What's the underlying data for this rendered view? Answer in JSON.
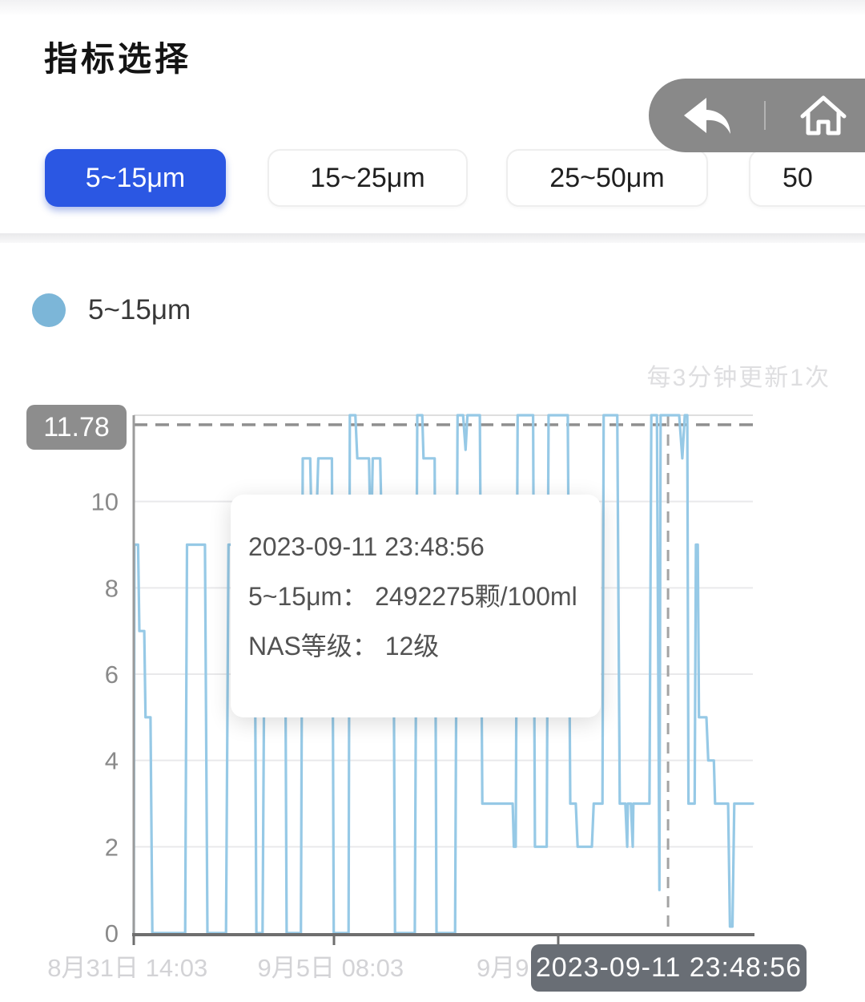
{
  "header": {
    "title": "指标选择"
  },
  "nav": {
    "back_icon": "back-arrow",
    "home_icon": "home"
  },
  "tabs": [
    {
      "label": "5~15μm",
      "active": true
    },
    {
      "label": "15~25μm",
      "active": false
    },
    {
      "label": "25~50μm",
      "active": false
    },
    {
      "label": "50",
      "active": false,
      "clipped": true
    }
  ],
  "legend": {
    "label": "5~15μm",
    "color": "#7cb6d8"
  },
  "update_note": "每3分钟更新1次",
  "max_badge": "11.78",
  "tooltip": {
    "line1": "2023-09-11 23:48:56",
    "line2": "5~15μm：  2492275颗/100ml",
    "line3": "NAS等级：  12级"
  },
  "x_cursor_badge": "2023-09-11 23:48:56",
  "colors": {
    "accent_blue": "#2b57e3",
    "line_blue": "#96c9e6",
    "capsule_gray": "#898989",
    "badge_gray": "#8d8d8d",
    "cursor_badge_gray": "#696e75"
  },
  "chart_data": {
    "type": "line",
    "title": "",
    "ylabel": "",
    "xlabel": "",
    "ylim": [
      0,
      12
    ],
    "y_ticks": [
      0,
      2,
      4,
      6,
      8,
      10
    ],
    "grid": true,
    "legend_position": "top-left",
    "max_line": {
      "value": 11.78,
      "label": "11.78"
    },
    "cursor_x": 0.863,
    "x_ticks": [
      0,
      0.3234,
      0.6856
    ],
    "x_tick_labels": [
      {
        "label": "8月31日 14:03",
        "pos": -0.01,
        "anchor": "middle"
      },
      {
        "label": "9月5日 08:03",
        "pos": 0.318,
        "anchor": "middle"
      },
      {
        "label": "9月9",
        "pos": 0.5537,
        "anchor": "start"
      }
    ],
    "series": [
      {
        "name": "5~15μm",
        "unit": "NAS等级(级)",
        "points": [
          [
            0,
            0
          ],
          [
            0.001,
            9
          ],
          [
            0.007,
            9
          ],
          [
            0.009,
            7
          ],
          [
            0.017,
            7
          ],
          [
            0.019,
            5
          ],
          [
            0.027,
            5
          ],
          [
            0.03,
            0
          ],
          [
            0.083,
            0
          ],
          [
            0.086,
            9
          ],
          [
            0.115,
            9
          ],
          [
            0.119,
            0
          ],
          [
            0.149,
            0
          ],
          [
            0.153,
            9
          ],
          [
            0.195,
            9
          ],
          [
            0.198,
            0
          ],
          [
            0.208,
            0
          ],
          [
            0.212,
            9
          ],
          [
            0.244,
            9
          ],
          [
            0.247,
            0
          ],
          [
            0.27,
            0
          ],
          [
            0.273,
            11
          ],
          [
            0.285,
            11
          ],
          [
            0.287,
            9.5
          ],
          [
            0.295,
            9.5
          ],
          [
            0.298,
            11
          ],
          [
            0.32,
            11
          ],
          [
            0.323,
            0
          ],
          [
            0.347,
            0
          ],
          [
            0.349,
            12
          ],
          [
            0.358,
            12
          ],
          [
            0.361,
            11
          ],
          [
            0.38,
            11
          ],
          [
            0.382,
            9.5
          ],
          [
            0.384,
            9.5
          ],
          [
            0.386,
            11
          ],
          [
            0.398,
            11
          ],
          [
            0.401,
            9
          ],
          [
            0.419,
            9
          ],
          [
            0.422,
            0
          ],
          [
            0.454,
            0
          ],
          [
            0.458,
            12
          ],
          [
            0.466,
            12
          ],
          [
            0.468,
            11
          ],
          [
            0.486,
            11
          ],
          [
            0.489,
            0
          ],
          [
            0.519,
            0
          ],
          [
            0.523,
            12
          ],
          [
            0.532,
            12
          ],
          [
            0.536,
            11.2
          ],
          [
            0.539,
            12
          ],
          [
            0.559,
            12
          ],
          [
            0.563,
            3
          ],
          [
            0.612,
            3
          ],
          [
            0.614,
            2
          ],
          [
            0.617,
            2
          ],
          [
            0.62,
            12
          ],
          [
            0.645,
            12
          ],
          [
            0.648,
            2
          ],
          [
            0.667,
            2
          ],
          [
            0.67,
            12
          ],
          [
            0.701,
            12
          ],
          [
            0.705,
            3
          ],
          [
            0.714,
            3
          ],
          [
            0.717,
            2
          ],
          [
            0.74,
            2
          ],
          [
            0.743,
            3
          ],
          [
            0.757,
            3
          ],
          [
            0.759,
            12
          ],
          [
            0.781,
            12
          ],
          [
            0.785,
            3
          ],
          [
            0.794,
            3
          ],
          [
            0.797,
            2
          ],
          [
            0.798,
            3
          ],
          [
            0.803,
            3
          ],
          [
            0.806,
            2
          ],
          [
            0.807,
            3
          ],
          [
            0.833,
            3
          ],
          [
            0.836,
            12
          ],
          [
            0.845,
            12
          ],
          [
            0.849,
            1
          ],
          [
            0.851,
            12
          ],
          [
            0.881,
            12
          ],
          [
            0.886,
            11
          ],
          [
            0.89,
            12
          ],
          [
            0.894,
            12
          ],
          [
            0.896,
            3
          ],
          [
            0.906,
            3
          ],
          [
            0.908,
            9
          ],
          [
            0.911,
            9
          ],
          [
            0.913,
            5
          ],
          [
            0.925,
            5
          ],
          [
            0.928,
            4
          ],
          [
            0.937,
            4
          ],
          [
            0.939,
            3
          ],
          [
            0.957,
            3
          ],
          [
            0.96,
            3
          ],
          [
            0.963,
            0.15
          ],
          [
            0.967,
            0.15
          ],
          [
            0.97,
            3
          ],
          [
            1.0,
            3
          ]
        ]
      }
    ]
  }
}
